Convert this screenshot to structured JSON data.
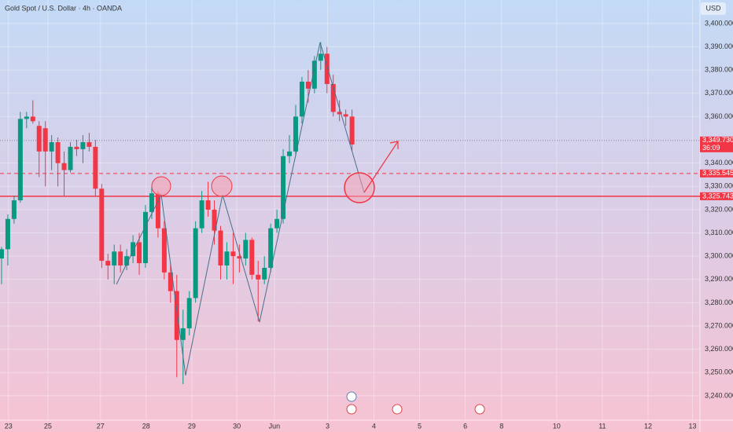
{
  "chart_data": {
    "type": "candlestick",
    "title": "Gold Spot / U.S. Dollar · 4h · OANDA",
    "currency": "USD",
    "open": [
      3299,
      3303,
      3316,
      3324,
      3359,
      3360,
      3356,
      3355,
      3345,
      3349,
      3340,
      3337,
      3347,
      3346,
      3349,
      3347,
      3329,
      3298,
      3296,
      3302,
      3296,
      3300,
      3306,
      3297,
      3319,
      3327,
      3312,
      3293,
      3285,
      3264,
      3269,
      3282,
      3312,
      3324,
      3320,
      3311,
      3296,
      3302,
      3300,
      3299,
      3307,
      3292,
      3290,
      3295,
      3312,
      3316,
      3343,
      3345,
      3360,
      3375,
      3372,
      3384,
      3387,
      3374,
      3362,
      3361,
      3360
    ],
    "high": [
      3304,
      3318,
      3326,
      3362,
      3362,
      3367,
      3358,
      3358,
      3352,
      3351,
      3345,
      3349,
      3350,
      3352,
      3353,
      3350,
      3331,
      3301,
      3305,
      3305,
      3303,
      3309,
      3310,
      3322,
      3330,
      3328,
      3315,
      3297,
      3292,
      3277,
      3285,
      3315,
      3328,
      3332,
      3324,
      3313,
      3306,
      3310,
      3305,
      3310,
      3308,
      3298,
      3300,
      3314,
      3320,
      3346,
      3352,
      3365,
      3377,
      3380,
      3386,
      3392,
      3390,
      3378,
      3367,
      3363,
      3363
    ],
    "low": [
      3288,
      3296,
      3314,
      3323,
      3355,
      3357,
      3334,
      3330,
      3337,
      3330,
      3326,
      3336,
      3343,
      3340,
      3345,
      3326,
      3295,
      3290,
      3288,
      3293,
      3294,
      3297,
      3292,
      3295,
      3316,
      3308,
      3290,
      3280,
      3248,
      3245,
      3266,
      3280,
      3310,
      3317,
      3305,
      3290,
      3290,
      3288,
      3293,
      3296,
      3290,
      3272,
      3288,
      3293,
      3310,
      3314,
      3340,
      3343,
      3357,
      3366,
      3370,
      3380,
      3370,
      3360,
      3358,
      3356,
      3345
    ],
    "close": [
      3303,
      3316,
      3324,
      3359,
      3360,
      3358,
      3345,
      3345,
      3349,
      3340,
      3337,
      3347,
      3346,
      3349,
      3347,
      3329,
      3298,
      3296,
      3302,
      3296,
      3300,
      3306,
      3297,
      3319,
      3327,
      3312,
      3293,
      3285,
      3264,
      3269,
      3282,
      3312,
      3324,
      3320,
      3311,
      3296,
      3302,
      3300,
      3299,
      3307,
      3292,
      3290,
      3295,
      3312,
      3316,
      3343,
      3345,
      3360,
      3375,
      3372,
      3384,
      3387,
      3374,
      3362,
      3361,
      3360,
      3348
    ],
    "xlim": [
      -0.25,
      111.6
    ],
    "xticks": [
      {
        "value": 1.1,
        "label": "23"
      },
      {
        "value": 7.4,
        "label": "25"
      },
      {
        "value": 15.8,
        "label": "27"
      },
      {
        "value": 23.1,
        "label": "28"
      },
      {
        "value": 30.4,
        "label": "29"
      },
      {
        "value": 37.6,
        "label": "30"
      },
      {
        "value": 43.6,
        "label": "Jun"
      },
      {
        "value": 52.1,
        "label": "3"
      },
      {
        "value": 59.5,
        "label": "4"
      },
      {
        "value": 66.8,
        "label": "5"
      },
      {
        "value": 74.1,
        "label": "6"
      },
      {
        "value": 79.9,
        "label": "8"
      },
      {
        "value": 88.7,
        "label": "10"
      },
      {
        "value": 96,
        "label": "11"
      },
      {
        "value": 103.3,
        "label": "12"
      },
      {
        "value": 110.4,
        "label": "13"
      }
    ],
    "ylim": [
      3229.5,
      3410.1
    ],
    "yticks": [
      {
        "value": 3240,
        "label": "3,240.000"
      },
      {
        "value": 3250,
        "label": "3,250.000"
      },
      {
        "value": 3260,
        "label": "3,260.000"
      },
      {
        "value": 3270,
        "label": "3,270.000"
      },
      {
        "value": 3280,
        "label": "3,280.000"
      },
      {
        "value": 3290,
        "label": "3,290.000"
      },
      {
        "value": 3300,
        "label": "3,300.000"
      },
      {
        "value": 3310,
        "label": "3,310.000"
      },
      {
        "value": 3320,
        "label": "3,320.000"
      },
      {
        "value": 3330,
        "label": "3,330.000"
      },
      {
        "value": 3340,
        "label": "3,340.000"
      },
      {
        "value": 3360,
        "label": "3,360.000"
      },
      {
        "value": 3370,
        "label": "3,370.000"
      },
      {
        "value": 3380,
        "label": "3,380.000"
      },
      {
        "value": 3390,
        "label": "3,390.000"
      },
      {
        "value": 3400,
        "label": "3,400.000"
      }
    ],
    "up_color": "#089981",
    "down_color": "#f23645",
    "grid": true,
    "levels": [
      {
        "value": 3349.73,
        "label": "3,349.730",
        "countdown": "36:09",
        "style": "dotted",
        "color": "#888888"
      },
      {
        "value": 3335.545,
        "label": "3,335.545",
        "style": "dashed",
        "color": "#f23645"
      },
      {
        "value": 3325.743,
        "label": "3,325.743",
        "style": "solid",
        "color": "#f23645"
      }
    ]
  }
}
